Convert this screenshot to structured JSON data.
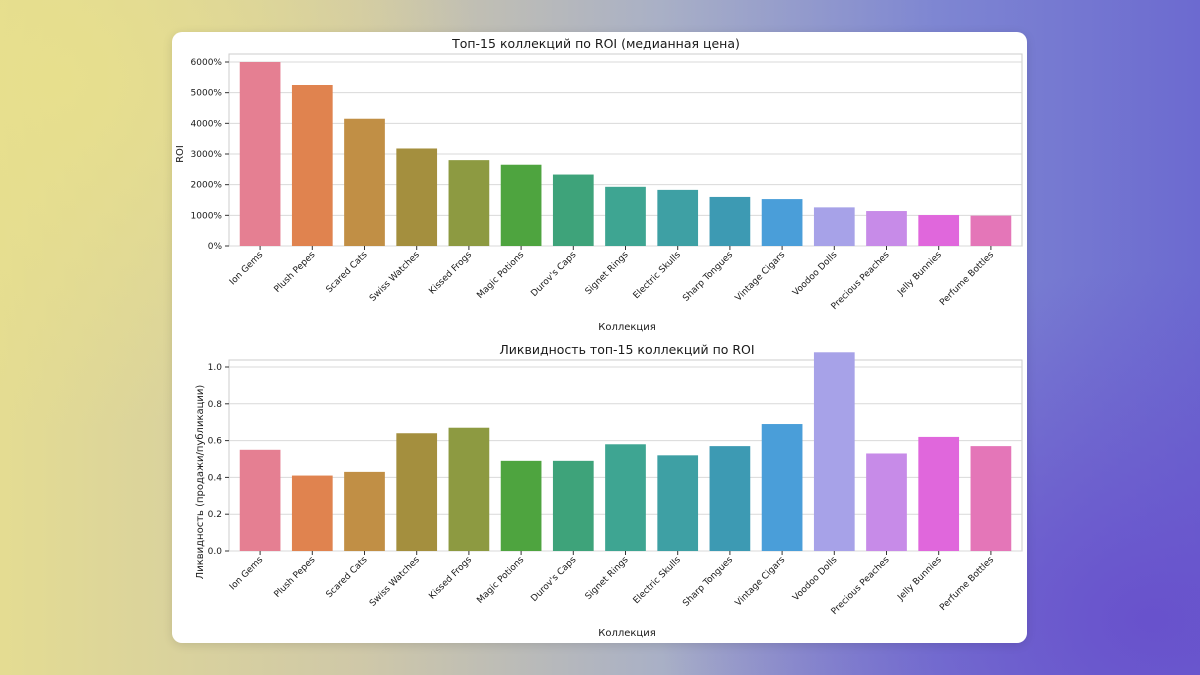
{
  "chart_data": [
    {
      "type": "bar",
      "title": "Топ-15 коллекций по ROI (медианная цена)",
      "xlabel": "Коллекция",
      "ylabel": "ROI",
      "categories": [
        "Ion Gems",
        "Plush Pepes",
        "Scared Cats",
        "Swiss Watches",
        "Kissed Frogs",
        "Magic Potions",
        "Durov's Caps",
        "Signet Rings",
        "Electric Skulls",
        "Sharp Tongues",
        "Vintage Cigars",
        "Voodoo Dolls",
        "Precious Peaches",
        "Jelly Bunnies",
        "Perfume Bottles"
      ],
      "values": [
        6000,
        5250,
        4150,
        3180,
        2800,
        2650,
        2330,
        1930,
        1830,
        1600,
        1530,
        1260,
        1140,
        1010,
        990
      ],
      "ylim": [
        0,
        6000
      ],
      "yticks": [
        0,
        1000,
        2000,
        3000,
        4000,
        5000,
        6000
      ],
      "ytick_labels": [
        "0%",
        "1000%",
        "2000%",
        "3000%",
        "4000%",
        "5000%",
        "6000%"
      ],
      "grid": true,
      "colors": [
        "#e57f92",
        "#e0834f",
        "#c18f45",
        "#a48f3e",
        "#8d9a41",
        "#4ea43f",
        "#3ea37a",
        "#3ea592",
        "#3ea0a4",
        "#3d9ab3",
        "#4a9ed9",
        "#a7a2e8",
        "#c78be8",
        "#e067dc",
        "#e476b8"
      ]
    },
    {
      "type": "bar",
      "title": "Ликвидность топ-15 коллекций по ROI",
      "xlabel": "Коллекция",
      "ylabel": "Ликвидность (продажи/публикации)",
      "categories": [
        "Ion Gems",
        "Plush Pepes",
        "Scared Cats",
        "Swiss Watches",
        "Kissed Frogs",
        "Magic Potions",
        "Durov's Caps",
        "Signet Rings",
        "Electric Skulls",
        "Sharp Tongues",
        "Vintage Cigars",
        "Voodoo Dolls",
        "Precious Peaches",
        "Jelly Bunnies",
        "Perfume Bottles"
      ],
      "values": [
        0.55,
        0.41,
        0.43,
        0.64,
        0.67,
        0.49,
        0.49,
        0.58,
        0.52,
        0.57,
        0.69,
        1.08,
        0.53,
        0.62,
        0.57
      ],
      "ylim": [
        0,
        1.1
      ],
      "yticks": [
        0,
        0.2,
        0.4,
        0.6,
        0.8,
        1.0
      ],
      "ytick_labels": [
        "0.0",
        "0.2",
        "0.4",
        "0.6",
        "0.8",
        "1.0"
      ],
      "grid": true,
      "colors": [
        "#e57f92",
        "#e0834f",
        "#c18f45",
        "#a48f3e",
        "#8d9a41",
        "#4ea43f",
        "#3ea37a",
        "#3ea592",
        "#3ea0a4",
        "#3d9ab3",
        "#4a9ed9",
        "#a7a2e8",
        "#c78be8",
        "#e067dc",
        "#e476b8"
      ]
    }
  ]
}
